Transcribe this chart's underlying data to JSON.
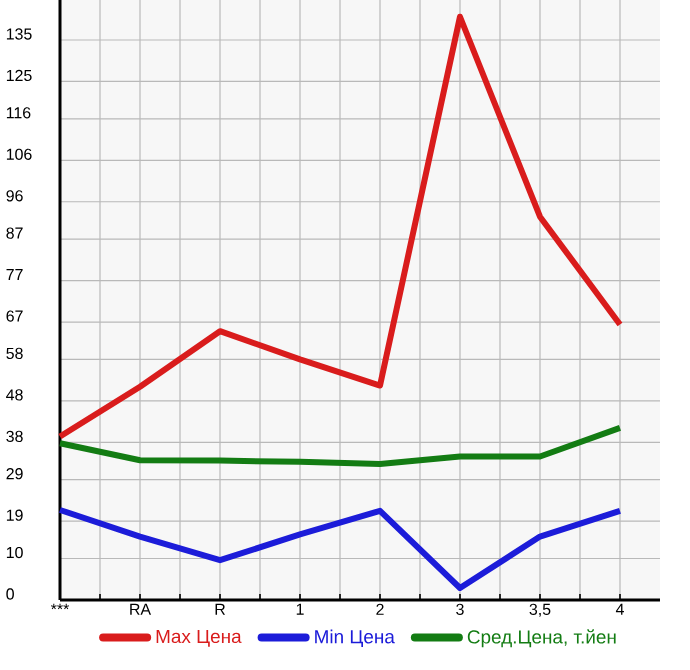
{
  "chart_data": {
    "type": "line",
    "categories": [
      "***",
      "RA",
      "R",
      "1",
      "2",
      "3",
      "3,5",
      "4"
    ],
    "series": [
      {
        "name": "Max Цена",
        "color": "#d91c1c",
        "values": [
          39.4,
          51.4,
          64.8,
          58,
          51.7,
          140.6,
          92.4,
          66.4
        ]
      },
      {
        "name": "Min Цена",
        "color": "#1c1cd9",
        "values": [
          21.7,
          15.3,
          9.6,
          15.8,
          21.5,
          2.9,
          15.3,
          21.5
        ]
      },
      {
        "name": "Сред.Цена, т.йен",
        "color": "#137c13",
        "values": [
          37.8,
          33.7,
          33.6,
          33.3,
          32.8,
          34.6,
          34.6,
          41.5
        ]
      }
    ],
    "ylim": [
      0,
      144.64
    ],
    "yticks": [
      0,
      10,
      19,
      29,
      38,
      48,
      58,
      67,
      77,
      87,
      96,
      106,
      116,
      125,
      135
    ],
    "grid": true,
    "legend": "bottom",
    "marker": "none",
    "line_style": "solid"
  }
}
